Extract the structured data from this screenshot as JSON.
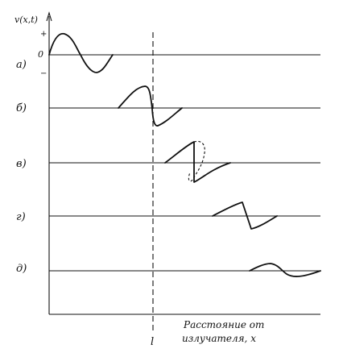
{
  "y_axis_label": "v(x,t)",
  "tick_plus": "+",
  "tick_zero": "0",
  "tick_minus": "−",
  "panels": [
    {
      "label": "а)"
    },
    {
      "label": "б)"
    },
    {
      "label": "в)"
    },
    {
      "label": "г)"
    },
    {
      "label": "д)"
    }
  ],
  "marker_label": "l",
  "x_axis_label_line1": "Расстояние от",
  "x_axis_label_line2": "излучателя, x"
}
